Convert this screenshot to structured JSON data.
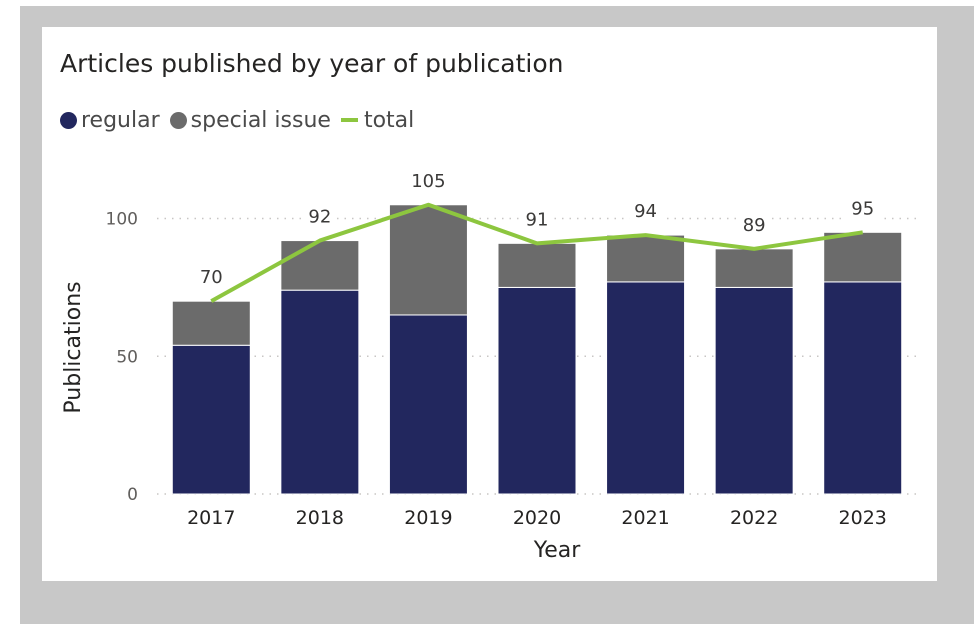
{
  "chart_data": {
    "type": "bar",
    "stacked": true,
    "title": "Articles published by year of publication",
    "xlabel": "Year",
    "ylabel": "Publications",
    "categories": [
      "2017",
      "2018",
      "2019",
      "2020",
      "2021",
      "2022",
      "2023"
    ],
    "series": [
      {
        "name": "regular",
        "type": "bar",
        "color": "#22275e",
        "values": [
          54,
          74,
          65,
          75,
          77,
          75,
          77
        ]
      },
      {
        "name": "special issue",
        "type": "bar",
        "color": "#6b6b6b",
        "values": [
          16,
          18,
          40,
          16,
          17,
          14,
          18
        ]
      },
      {
        "name": "total",
        "type": "line",
        "color": "#8dc63f",
        "values": [
          70,
          92,
          105,
          91,
          94,
          89,
          95
        ]
      }
    ],
    "data_labels": [
      "70",
      "92",
      "105",
      "91",
      "94",
      "89",
      "95"
    ],
    "yticks": [
      0,
      50,
      100
    ],
    "ytick_labels": [
      "0",
      "50",
      "100"
    ],
    "ylim": [
      0,
      110
    ],
    "grid": "horizontal dotted",
    "legend": "top-left"
  }
}
